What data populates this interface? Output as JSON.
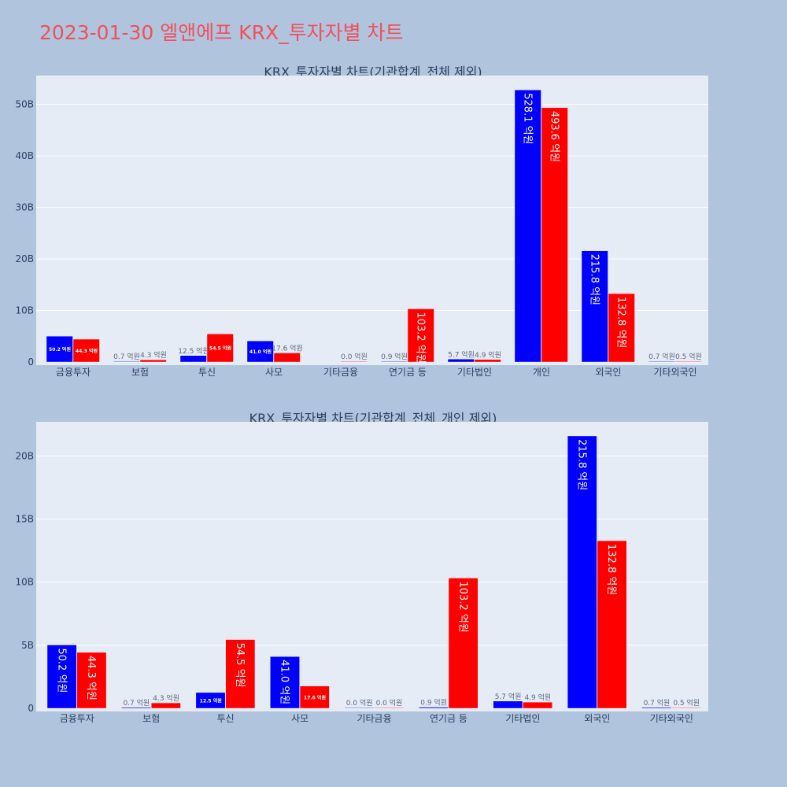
{
  "page": {
    "title": "2023-01-30 엘앤에프 KRX_투자자별 차트"
  },
  "colors": {
    "background": "#b0c4de",
    "plot_bg": "#e5ecf6",
    "grid": "#ffffff",
    "series_a": "#0000ff",
    "series_b": "#ff0000",
    "title": "#f0505a",
    "text": "#2a3f5f"
  },
  "chart_data": [
    {
      "type": "bar",
      "title": "KRX_투자자별 차트(기관합계_전체 제외)",
      "categories": [
        "금융투자",
        "보험",
        "투신",
        "사모",
        "기타금융",
        "연기금 등",
        "기타법인",
        "개인",
        "외국인",
        "기타외국인"
      ],
      "series": [
        {
          "color": "#0000ff",
          "values": [
            5.02,
            0.07,
            1.25,
            4.1,
            null,
            0.09,
            0.57,
            52.81,
            21.58,
            0.07
          ],
          "labels": [
            "50.2 억원",
            "0.7 억원",
            "12.5 억원",
            "41.0 억원",
            "",
            "0.9 억원",
            "5.7 억원",
            "528.1 억원",
            "215.8 억원",
            "0.7 억원"
          ]
        },
        {
          "color": "#ff0000",
          "values": [
            4.43,
            0.43,
            5.45,
            1.76,
            0.0,
            10.32,
            0.49,
            49.36,
            13.28,
            0.05
          ],
          "labels": [
            "44.3 억원",
            "4.3 억원",
            "54.5 억원",
            "17.6 억원",
            "0.0 억원",
            "103.2 억원",
            "4.9 억원",
            "493.6 억원",
            "132.8 억원",
            "0.5 억원"
          ]
        }
      ],
      "yticks": [
        {
          "value": 0,
          "label": "0"
        },
        {
          "value": 10,
          "label": "10B"
        },
        {
          "value": 20,
          "label": "20B"
        },
        {
          "value": 30,
          "label": "30B"
        },
        {
          "value": 40,
          "label": "40B"
        },
        {
          "value": 50,
          "label": "50B"
        }
      ],
      "ylim": [
        0,
        55.6
      ],
      "grid": true
    },
    {
      "type": "bar",
      "title": "KRX_투자자별 차트(기관합계_전체_개인 제외)",
      "categories": [
        "금융투자",
        "보험",
        "투신",
        "사모",
        "기타금융",
        "연기금 등",
        "기타법인",
        "외국인",
        "기타외국인"
      ],
      "series": [
        {
          "color": "#0000ff",
          "values": [
            5.02,
            0.07,
            1.25,
            4.1,
            0.0,
            0.09,
            0.57,
            21.58,
            0.07
          ],
          "labels": [
            "50.2 억원",
            "0.7 억원",
            "12.5 억원",
            "41.0 억원",
            "0.0 억원",
            "0.9 억원",
            "5.7 억원",
            "215.8 억원",
            "0.7 억원"
          ]
        },
        {
          "color": "#ff0000",
          "values": [
            4.43,
            0.43,
            5.45,
            1.76,
            0.0,
            10.32,
            0.49,
            13.28,
            0.05
          ],
          "labels": [
            "44.3 억원",
            "4.3 억원",
            "54.5 억원",
            "17.6 억원",
            "0.0 억원",
            "103.2 억원",
            "4.9 억원",
            "132.8 억원",
            "0.5 억원"
          ]
        }
      ],
      "yticks": [
        {
          "value": 0,
          "label": "0"
        },
        {
          "value": 5,
          "label": "5B"
        },
        {
          "value": 10,
          "label": "10B"
        },
        {
          "value": 15,
          "label": "15B"
        },
        {
          "value": 20,
          "label": "20B"
        }
      ],
      "ylim": [
        0,
        22.7
      ],
      "grid": true
    }
  ]
}
